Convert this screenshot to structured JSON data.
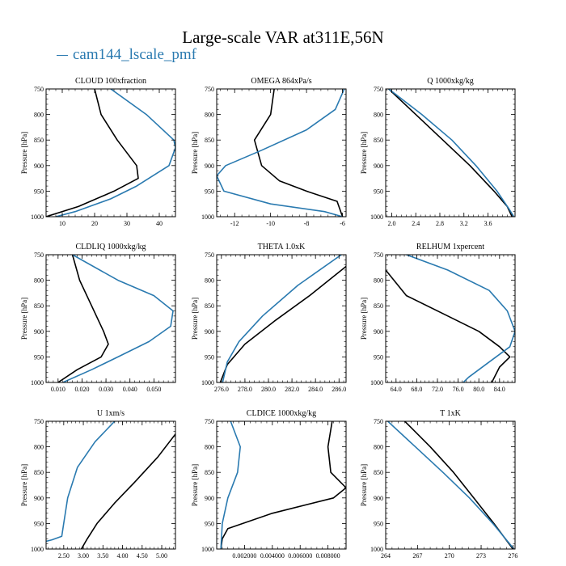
{
  "title": "Large-scale VAR at311E,56N",
  "legend": {
    "series_name": "cam144_lscale_pmf"
  },
  "colors": {
    "series_a": "#000000",
    "series_b": "#2a7ab0"
  },
  "chart_data": [
    {
      "type": "line",
      "title": "CLOUD  100xfraction",
      "ylabel": "Pressure [hPa]",
      "xlim": [
        5,
        45
      ],
      "ylim": [
        1000,
        750
      ],
      "xticks": [
        10,
        20,
        30,
        40
      ],
      "xtick_labels": [
        "10",
        "20",
        "30",
        "40"
      ],
      "yticks": [
        750,
        800,
        850,
        900,
        950,
        1000
      ],
      "ytick_labels": [
        "750",
        "800",
        "850",
        "900",
        "950",
        "1000"
      ],
      "series": [
        {
          "color": "#000000",
          "points": [
            [
              20,
              750
            ],
            [
              22,
              800
            ],
            [
              27,
              850
            ],
            [
              33,
              900
            ],
            [
              33.5,
              925
            ],
            [
              26,
              950
            ],
            [
              15,
              980
            ],
            [
              5,
              1000
            ]
          ]
        },
        {
          "name": "cam144_lscale_pmf",
          "color": "#2a7ab0",
          "points": [
            [
              25,
              750
            ],
            [
              36,
              800
            ],
            [
              44.5,
              850
            ],
            [
              45,
              865
            ],
            [
              43,
              900
            ],
            [
              33,
              940
            ],
            [
              25,
              965
            ],
            [
              14,
              990
            ],
            [
              8,
              1000
            ]
          ]
        }
      ]
    },
    {
      "type": "line",
      "title": "OMEGA  864xPa/s",
      "ylabel": "Pressure [hPa]",
      "xlim": [
        -13,
        -5.8
      ],
      "ylim": [
        1000,
        750
      ],
      "xticks": [
        -12,
        -10,
        -8,
        -6
      ],
      "xtick_labels": [
        "-12",
        "-10",
        "-8",
        "-6"
      ],
      "yticks": [
        750,
        800,
        850,
        900,
        950,
        1000
      ],
      "ytick_labels": [
        "750",
        "800",
        "850",
        "900",
        "950",
        "1000"
      ],
      "series": [
        {
          "color": "#000000",
          "points": [
            [
              -9.8,
              750
            ],
            [
              -10,
              800
            ],
            [
              -10.9,
              850
            ],
            [
              -10.5,
              900
            ],
            [
              -9.5,
              930
            ],
            [
              -8,
              950
            ],
            [
              -6.3,
              970
            ],
            [
              -6,
              1000
            ]
          ]
        },
        {
          "name": "cam144_lscale_pmf",
          "color": "#2a7ab0",
          "points": [
            [
              -5.9,
              750
            ],
            [
              -6.4,
              790
            ],
            [
              -8,
              830
            ],
            [
              -10.5,
              870
            ],
            [
              -12.5,
              900
            ],
            [
              -13,
              920
            ],
            [
              -12.6,
              950
            ],
            [
              -10,
              975
            ],
            [
              -7,
              990
            ],
            [
              -6,
              1000
            ]
          ]
        }
      ]
    },
    {
      "type": "line",
      "title": "Q  1000xkg/kg",
      "ylabel": "Pressure [hPa]",
      "xlim": [
        1.9,
        4.05
      ],
      "ylim": [
        1000,
        750
      ],
      "xticks": [
        2.0,
        2.4,
        2.8,
        3.2,
        3.6
      ],
      "xtick_labels": [
        "2.0",
        "2.4",
        "2.8",
        "3.2",
        "3.6"
      ],
      "yticks": [
        750,
        800,
        850,
        900,
        950,
        1000
      ],
      "ytick_labels": [
        "750",
        "800",
        "850",
        "900",
        "950",
        "1000"
      ],
      "series": [
        {
          "color": "#000000",
          "points": [
            [
              1.95,
              750
            ],
            [
              2.4,
              800
            ],
            [
              2.85,
              850
            ],
            [
              3.3,
              900
            ],
            [
              3.7,
              950
            ],
            [
              3.92,
              980
            ],
            [
              4.0,
              1000
            ]
          ]
        },
        {
          "name": "cam144_lscale_pmf",
          "color": "#2a7ab0",
          "points": [
            [
              1.95,
              750
            ],
            [
              2.5,
              800
            ],
            [
              3.0,
              850
            ],
            [
              3.4,
              900
            ],
            [
              3.75,
              950
            ],
            [
              3.95,
              985
            ],
            [
              4.03,
              1000
            ]
          ]
        }
      ]
    },
    {
      "type": "line",
      "title": "CLDLIQ  1000xkg/kg",
      "ylabel": "Pressure [hPa]",
      "xlim": [
        0.005,
        0.059
      ],
      "ylim": [
        1000,
        750
      ],
      "xticks": [
        0.01,
        0.02,
        0.03,
        0.04,
        0.05
      ],
      "xtick_labels": [
        "0.010",
        "0.020",
        "0.030",
        "0.040",
        "0.050"
      ],
      "yticks": [
        750,
        800,
        850,
        900,
        950,
        1000
      ],
      "ytick_labels": [
        "750",
        "800",
        "850",
        "900",
        "950",
        "1000"
      ],
      "series": [
        {
          "color": "#000000",
          "points": [
            [
              0.016,
              750
            ],
            [
              0.019,
              800
            ],
            [
              0.024,
              850
            ],
            [
              0.029,
              900
            ],
            [
              0.031,
              925
            ],
            [
              0.028,
              950
            ],
            [
              0.018,
              975
            ],
            [
              0.01,
              1000
            ]
          ]
        },
        {
          "name": "cam144_lscale_pmf",
          "color": "#2a7ab0",
          "points": [
            [
              0.016,
              750
            ],
            [
              0.035,
              800
            ],
            [
              0.05,
              830
            ],
            [
              0.058,
              860
            ],
            [
              0.057,
              890
            ],
            [
              0.048,
              920
            ],
            [
              0.035,
              950
            ],
            [
              0.024,
              975
            ],
            [
              0.012,
              1000
            ]
          ]
        }
      ]
    },
    {
      "type": "line",
      "title": "THETA  1.0xK",
      "ylabel": "Pressure [hPa]",
      "xlim": [
        275.6,
        286.6
      ],
      "ylim": [
        1000,
        750
      ],
      "xticks": [
        276,
        278,
        280,
        282,
        284,
        286
      ],
      "xtick_labels": [
        "276.0",
        "278.0",
        "280.0",
        "282.0",
        "284.0",
        "286.0"
      ],
      "yticks": [
        750,
        800,
        850,
        900,
        950,
        1000
      ],
      "ytick_labels": [
        "750",
        "800",
        "850",
        "900",
        "950",
        "1000"
      ],
      "series": [
        {
          "color": "#000000",
          "points": [
            [
              286.6,
              773
            ],
            [
              283.5,
              830
            ],
            [
              280.5,
              880
            ],
            [
              278,
              925
            ],
            [
              276.5,
              965
            ],
            [
              275.9,
              1000
            ]
          ]
        },
        {
          "name": "cam144_lscale_pmf",
          "color": "#2a7ab0",
          "points": [
            [
              286.2,
              750
            ],
            [
              282.5,
              810
            ],
            [
              279.5,
              870
            ],
            [
              277.5,
              920
            ],
            [
              276.5,
              960
            ],
            [
              276.1,
              1000
            ]
          ]
        }
      ]
    },
    {
      "type": "line",
      "title": "RELHUM  1xpercent",
      "ylabel": "Pressure [hPa]",
      "xlim": [
        62,
        87
      ],
      "ylim": [
        1000,
        750
      ],
      "xticks": [
        64,
        68,
        72,
        76,
        80,
        84
      ],
      "xtick_labels": [
        "64.0",
        "68.0",
        "72.0",
        "76.0",
        "80.0",
        "84.0"
      ],
      "yticks": [
        750,
        800,
        850,
        900,
        950,
        1000
      ],
      "ytick_labels": [
        "750",
        "800",
        "850",
        "900",
        "950",
        "1000"
      ],
      "series": [
        {
          "color": "#000000",
          "points": [
            [
              62,
              780
            ],
            [
              66,
              830
            ],
            [
              74,
              870
            ],
            [
              80,
              900
            ],
            [
              84,
              930
            ],
            [
              86,
              950
            ],
            [
              84,
              970
            ],
            [
              82.5,
              1000
            ]
          ]
        },
        {
          "name": "cam144_lscale_pmf",
          "color": "#2a7ab0",
          "points": [
            [
              66,
              750
            ],
            [
              74,
              780
            ],
            [
              82,
              820
            ],
            [
              85.5,
              860
            ],
            [
              87,
              900
            ],
            [
              86,
              930
            ],
            [
              82,
              960
            ],
            [
              78,
              990
            ],
            [
              77,
              1000
            ]
          ]
        }
      ]
    },
    {
      "type": "line",
      "title": "U  1xm/s",
      "ylabel": "Pressure [hPa]",
      "xlim": [
        2.05,
        5.35
      ],
      "ylim": [
        1000,
        750
      ],
      "xticks": [
        2.5,
        3.0,
        3.5,
        4.0,
        4.5,
        5.0
      ],
      "xtick_labels": [
        "2.50",
        "3.00",
        "3.50",
        "4.00",
        "4.50",
        "5.00"
      ],
      "yticks": [
        750,
        800,
        850,
        900,
        950,
        1000
      ],
      "ytick_labels": [
        "750",
        "800",
        "850",
        "900",
        "950",
        "1000"
      ],
      "series": [
        {
          "color": "#000000",
          "points": [
            [
              5.35,
              775
            ],
            [
              4.9,
              820
            ],
            [
              4.3,
              870
            ],
            [
              3.8,
              910
            ],
            [
              3.35,
              950
            ],
            [
              3.1,
              980
            ],
            [
              2.95,
              1000
            ]
          ]
        },
        {
          "name": "cam144_lscale_pmf",
          "color": "#2a7ab0",
          "points": [
            [
              3.8,
              750
            ],
            [
              3.3,
              790
            ],
            [
              2.85,
              840
            ],
            [
              2.6,
              900
            ],
            [
              2.5,
              950
            ],
            [
              2.45,
              975
            ],
            [
              2.2,
              982
            ],
            [
              2.05,
              985
            ]
          ]
        }
      ]
    },
    {
      "type": "line",
      "title": "CLDICE  1000xkg/kg",
      "ylabel": "Pressure [hPa]",
      "xlim": [
        0.0,
        0.0093
      ],
      "ylim": [
        1000,
        750
      ],
      "xticks": [
        0.002,
        0.004,
        0.006,
        0.008
      ],
      "xtick_labels": [
        "0.002000",
        "0.004000",
        "0.006000",
        "0.008000"
      ],
      "yticks": [
        750,
        800,
        850,
        900,
        950,
        1000
      ],
      "ytick_labels": [
        "750",
        "800",
        "850",
        "900",
        "950",
        "1000"
      ],
      "series": [
        {
          "color": "#000000",
          "points": [
            [
              0.0083,
              750
            ],
            [
              0.008,
              800
            ],
            [
              0.0082,
              850
            ],
            [
              0.0093,
              880
            ],
            [
              0.0084,
              900
            ],
            [
              0.004,
              930
            ],
            [
              0.0008,
              960
            ],
            [
              0.0004,
              980
            ],
            [
              0.0003,
              1000
            ]
          ]
        },
        {
          "name": "cam144_lscale_pmf",
          "color": "#2a7ab0",
          "points": [
            [
              0.001,
              750
            ],
            [
              0.0017,
              800
            ],
            [
              0.0015,
              850
            ],
            [
              0.0008,
              900
            ],
            [
              0.0004,
              950
            ],
            [
              0.0003,
              1000
            ]
          ]
        }
      ]
    },
    {
      "type": "line",
      "title": "T  1xK",
      "ylabel": "Pressure [hPa]",
      "xlim": [
        264,
        276.2
      ],
      "ylim": [
        1000,
        750
      ],
      "xticks": [
        264,
        267,
        270,
        273,
        276
      ],
      "xtick_labels": [
        "264",
        "267",
        "270",
        "273",
        "276"
      ],
      "yticks": [
        750,
        800,
        850,
        900,
        950,
        1000
      ],
      "ytick_labels": [
        "750",
        "800",
        "850",
        "900",
        "950",
        "1000"
      ],
      "series": [
        {
          "color": "#000000",
          "points": [
            [
              265.8,
              750
            ],
            [
              268.2,
              800
            ],
            [
              270.4,
              850
            ],
            [
              272.3,
              900
            ],
            [
              274.2,
              950
            ],
            [
              276,
              1000
            ]
          ]
        },
        {
          "name": "cam144_lscale_pmf",
          "color": "#2a7ab0",
          "points": [
            [
              264.2,
              750
            ],
            [
              266.8,
              800
            ],
            [
              269.4,
              850
            ],
            [
              271.9,
              900
            ],
            [
              274.1,
              950
            ],
            [
              276.1,
              1000
            ]
          ]
        }
      ]
    }
  ]
}
